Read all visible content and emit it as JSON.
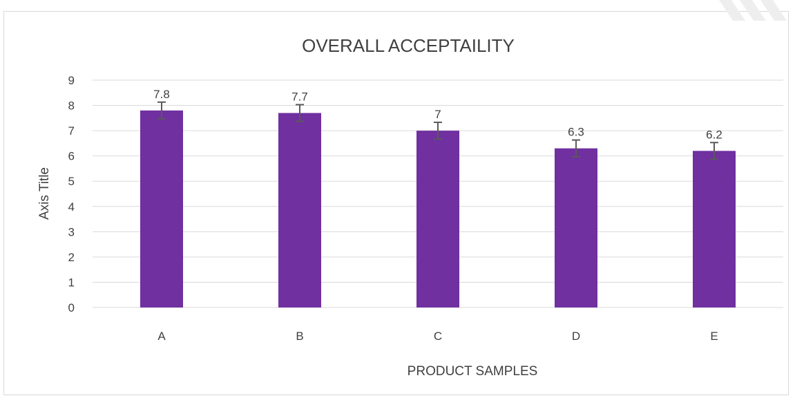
{
  "chart_data": {
    "type": "bar",
    "title": "OVERALL ACCEPTAILITY",
    "xlabel": "PRODUCT SAMPLES",
    "ylabel": "Axis Title",
    "categories": [
      "A",
      "B",
      "C",
      "D",
      "E"
    ],
    "values": [
      7.8,
      7.7,
      7,
      6.3,
      6.2
    ],
    "data_labels": [
      "7.8",
      "7.7",
      "7",
      "6.3",
      "6.2"
    ],
    "error": [
      0.33,
      0.33,
      0.33,
      0.33,
      0.33
    ],
    "ylim": [
      0,
      9
    ],
    "yticks": [
      "0",
      "1",
      "2",
      "3",
      "4",
      "5",
      "6",
      "7",
      "8",
      "9"
    ],
    "grid": true,
    "legend": "none",
    "colors": {
      "bar": "#7030a0",
      "gridline": "#d9d9d9",
      "text": "#404040",
      "title": "#404040",
      "error_bar": "#595959"
    }
  }
}
